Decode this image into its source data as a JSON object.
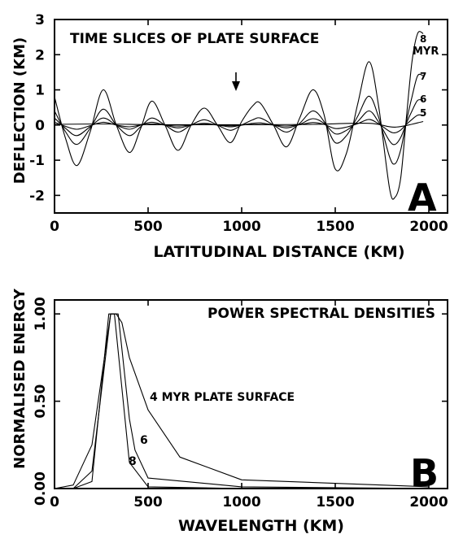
{
  "chart_data": [
    {
      "type": "line",
      "panel": "A",
      "title": "TIME SLICES OF PLATE SURFACE",
      "xlabel": "LATITUDINAL DISTANCE (KM)",
      "ylabel": "DEFLECTION (KM)",
      "xlim": [
        0,
        2100
      ],
      "ylim": [
        -2.5,
        3
      ],
      "xticks": [
        "0",
        "500",
        "1000",
        "1500",
        "2000"
      ],
      "yticks": [
        "-2",
        "-1",
        "0",
        "1",
        "2",
        "3"
      ],
      "arrow_x": 1000,
      "series_label_unit": "MYR",
      "series": [
        {
          "name": "8",
          "x": [
            0,
            60,
            120,
            190,
            260,
            330,
            400,
            460,
            520,
            590,
            660,
            730,
            800,
            870,
            940,
            1000,
            1060,
            1100,
            1170,
            1240,
            1310,
            1380,
            1440,
            1500,
            1560,
            1620,
            1680,
            1730,
            1790,
            1820,
            1850,
            1880,
            1910,
            1940,
            1970
          ],
          "y": [
            0.8,
            -0.4,
            -1.15,
            -0.2,
            1.0,
            0.0,
            -0.78,
            -0.1,
            0.68,
            0.0,
            -0.72,
            0.0,
            0.48,
            0.0,
            -0.5,
            0.1,
            0.55,
            0.62,
            0.0,
            -0.62,
            0.2,
            1.0,
            0.3,
            -1.25,
            -0.8,
            0.6,
            1.8,
            0.6,
            -1.8,
            -2.05,
            -1.5,
            0.2,
            1.8,
            2.6,
            2.6
          ]
        },
        {
          "name": "7",
          "x": [
            0,
            60,
            120,
            190,
            260,
            330,
            400,
            460,
            520,
            590,
            660,
            730,
            800,
            870,
            940,
            1000,
            1060,
            1100,
            1170,
            1240,
            1310,
            1380,
            1440,
            1500,
            1560,
            1620,
            1680,
            1730,
            1790,
            1820,
            1850,
            1880,
            1910,
            1940,
            1970
          ],
          "y": [
            0.4,
            -0.2,
            -0.55,
            -0.1,
            0.45,
            0.0,
            -0.3,
            -0.05,
            0.2,
            0.0,
            -0.2,
            0.0,
            0.15,
            0.0,
            -0.15,
            0.0,
            0.15,
            0.2,
            0.0,
            -0.2,
            0.05,
            0.4,
            0.1,
            -0.5,
            -0.3,
            0.25,
            0.82,
            0.25,
            -0.9,
            -1.1,
            -0.7,
            0.1,
            0.8,
            1.4,
            1.4
          ]
        },
        {
          "name": "6",
          "x": [
            0,
            60,
            120,
            190,
            260,
            330,
            400,
            460,
            520,
            590,
            660,
            730,
            800,
            870,
            940,
            1000,
            1060,
            1100,
            1170,
            1240,
            1310,
            1380,
            1440,
            1500,
            1560,
            1620,
            1680,
            1730,
            1790,
            1820,
            1850,
            1880,
            1910,
            1940,
            1970
          ],
          "y": [
            0.2,
            -0.1,
            -0.3,
            -0.05,
            0.2,
            0.0,
            -0.12,
            0.0,
            0.08,
            0.0,
            -0.08,
            0.0,
            0.05,
            0.0,
            -0.05,
            0.0,
            0.05,
            0.06,
            0.0,
            -0.08,
            0.02,
            0.18,
            0.05,
            -0.25,
            -0.15,
            0.1,
            0.4,
            0.1,
            -0.45,
            -0.55,
            -0.35,
            0.05,
            0.4,
            0.7,
            0.7
          ]
        },
        {
          "name": "5",
          "x": [
            0,
            60,
            120,
            190,
            260,
            330,
            400,
            460,
            520,
            590,
            660,
            730,
            800,
            870,
            940,
            1000,
            1060,
            1100,
            1170,
            1240,
            1310,
            1380,
            1440,
            1500,
            1560,
            1620,
            1680,
            1730,
            1790,
            1820,
            1850,
            1880,
            1910,
            1940,
            1970
          ],
          "y": [
            0.08,
            -0.04,
            -0.12,
            -0.02,
            0.08,
            0.0,
            -0.05,
            0.0,
            0.03,
            0.0,
            -0.03,
            0.0,
            0.02,
            0.0,
            -0.02,
            0.0,
            0.02,
            0.02,
            0.0,
            -0.03,
            0.01,
            0.07,
            0.02,
            -0.1,
            -0.06,
            0.04,
            0.16,
            0.04,
            -0.18,
            -0.22,
            -0.14,
            0.02,
            0.16,
            0.28,
            0.28
          ]
        },
        {
          "name": "",
          "x": [
            0,
            260,
            520,
            800,
            1100,
            1380,
            1680,
            1820,
            1970
          ],
          "y": [
            0.02,
            0.03,
            0.01,
            0.01,
            0.01,
            0.02,
            0.05,
            -0.06,
            0.1
          ]
        }
      ]
    },
    {
      "type": "line",
      "panel": "B",
      "title": "POWER SPECTRAL DENSITIES",
      "xlabel": "WAVELENGTH (KM)",
      "ylabel": "NORMALISED ENERGY",
      "xlim": [
        0,
        2100
      ],
      "ylim": [
        0,
        1.08
      ],
      "xticks": [
        "0",
        "500",
        "1000",
        "1500",
        "2000"
      ],
      "yticks": [
        "0.00",
        "0.50",
        "1.00"
      ],
      "annotations": [
        "4 MYR PLATE SURFACE",
        "6",
        "8"
      ],
      "series": [
        {
          "name": "4 MYR PLATE SURFACE",
          "x": [
            0,
            100,
            200,
            300,
            330,
            360,
            400,
            500,
            670,
            1000,
            2000
          ],
          "y": [
            0.0,
            0.02,
            0.25,
            1.0,
            1.0,
            0.95,
            0.75,
            0.45,
            0.18,
            0.05,
            0.01
          ]
        },
        {
          "name": "6",
          "x": [
            0,
            100,
            200,
            300,
            340,
            400,
            430,
            500,
            1000,
            2000
          ],
          "y": [
            0.0,
            0.0,
            0.1,
            1.0,
            1.0,
            0.4,
            0.22,
            0.06,
            0.01,
            0.0
          ]
        },
        {
          "name": "8",
          "x": [
            0,
            100,
            200,
            290,
            320,
            400,
            500,
            1000,
            2000
          ],
          "y": [
            0.0,
            0.0,
            0.04,
            1.0,
            1.0,
            0.15,
            0.01,
            0.0,
            0.0
          ]
        }
      ]
    }
  ],
  "panel_letters": {
    "a": "A",
    "b": "B"
  },
  "series_labels": {
    "s8": "8",
    "s7": "7",
    "s6": "6",
    "s5": "5",
    "unit": "MYR"
  },
  "annotations_b": {
    "main": "4 MYR PLATE SURFACE",
    "six": "6",
    "eight": "8"
  }
}
